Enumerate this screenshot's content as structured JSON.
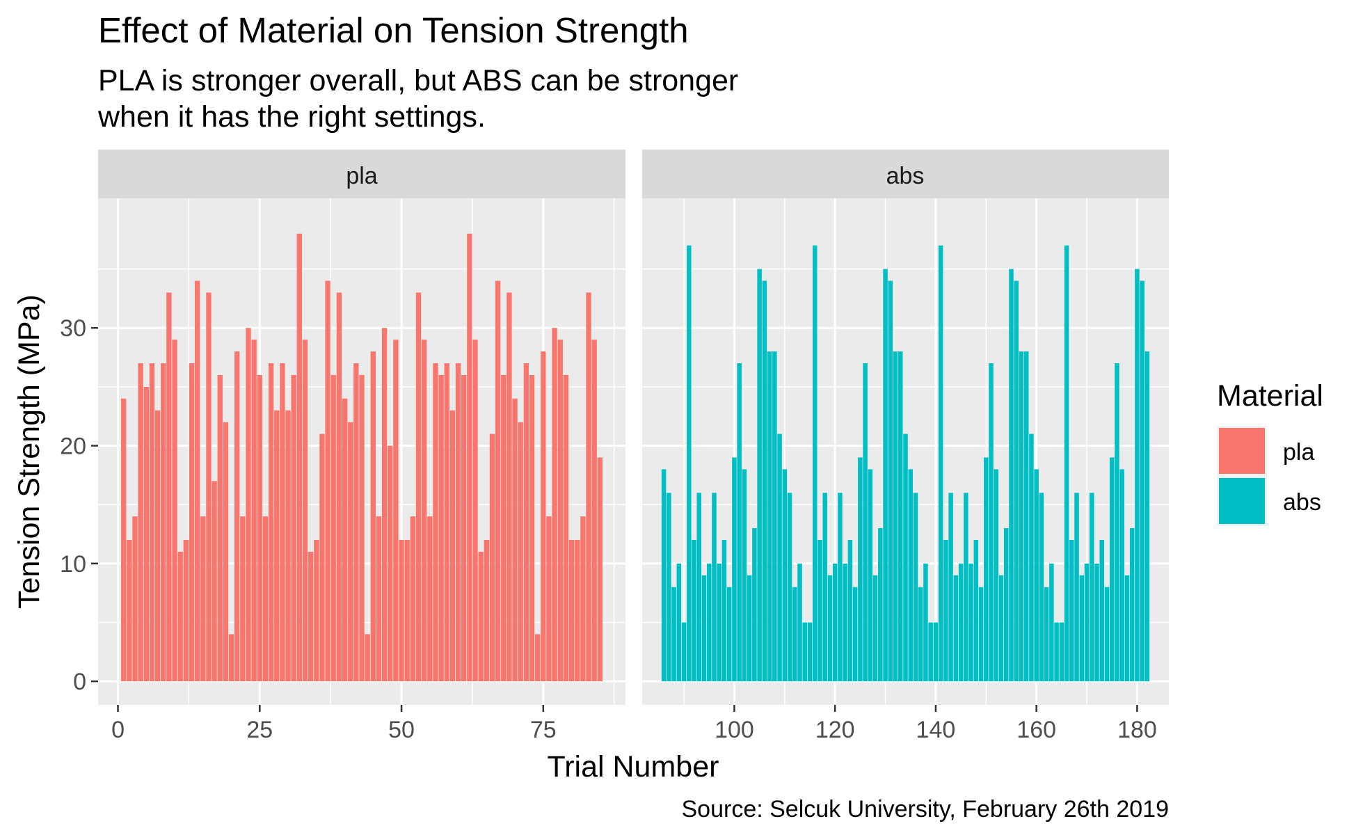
{
  "chart_data": {
    "type": "bar",
    "title": "Effect of Material on Tension Strength",
    "subtitle": [
      "PLA is stronger overall, but ABS can be stronger",
      "when it has the right settings."
    ],
    "xlabel": "Trial Number",
    "ylabel": "Tension Strength (MPa)",
    "caption": "Source: Selcuk University, February 26th 2019",
    "legend": {
      "title": "Material",
      "position": "right",
      "entries": [
        {
          "label": "pla",
          "color": "#F8766D"
        },
        {
          "label": "abs",
          "color": "#00BFC4"
        }
      ]
    },
    "ylim": [
      -2,
      41
    ],
    "y_ticks": [
      0,
      10,
      20,
      30
    ],
    "grid": true,
    "panels": [
      {
        "name": "pla",
        "color": "#F8766D",
        "xlim": [
          -3.5,
          89.5
        ],
        "x_ticks": [
          0,
          25,
          50,
          75
        ],
        "x_start": 1,
        "values": [
          24,
          12,
          14,
          27,
          25,
          27,
          23,
          27,
          33,
          29,
          11,
          12,
          27,
          34,
          14,
          33,
          17,
          26,
          22,
          4,
          28,
          14,
          30,
          29,
          26,
          14,
          27,
          23,
          27,
          23,
          26,
          38,
          29,
          11,
          12,
          21,
          34,
          26,
          33,
          24,
          22,
          27,
          26,
          4,
          28,
          14,
          30,
          20,
          29,
          12,
          12,
          14,
          33,
          29,
          14,
          27,
          26,
          27,
          23,
          27,
          26,
          38,
          29,
          11,
          12,
          21,
          34,
          26,
          33,
          24,
          22,
          27,
          26,
          4,
          28,
          14,
          30,
          29,
          26,
          12,
          12,
          14,
          33,
          29,
          19
        ]
      },
      {
        "name": "abs",
        "color": "#00BFC4",
        "xlim": [
          81.7,
          186.3
        ],
        "x_ticks": [
          100,
          120,
          140,
          160,
          180
        ],
        "x_start": 86,
        "values": [
          18,
          16,
          8,
          10,
          5,
          37,
          12,
          16,
          9,
          10,
          16,
          10,
          12,
          8,
          19,
          27,
          18,
          9,
          13,
          35,
          34,
          28,
          28,
          21,
          18,
          16,
          8,
          10,
          5,
          5,
          37,
          12,
          16,
          9,
          10,
          16,
          10,
          12,
          8,
          19,
          27,
          18,
          9,
          13,
          35,
          34,
          28,
          28,
          21,
          18,
          16,
          8,
          10,
          5,
          5,
          37,
          12,
          16,
          9,
          10,
          16,
          10,
          12,
          8,
          19,
          27,
          18,
          9,
          13,
          35,
          34,
          28,
          28,
          21,
          18,
          16,
          8,
          10,
          5,
          5,
          37,
          12,
          16,
          9,
          10,
          16,
          10,
          12,
          8,
          19,
          27,
          18,
          9,
          13,
          35,
          34,
          28
        ]
      }
    ]
  }
}
